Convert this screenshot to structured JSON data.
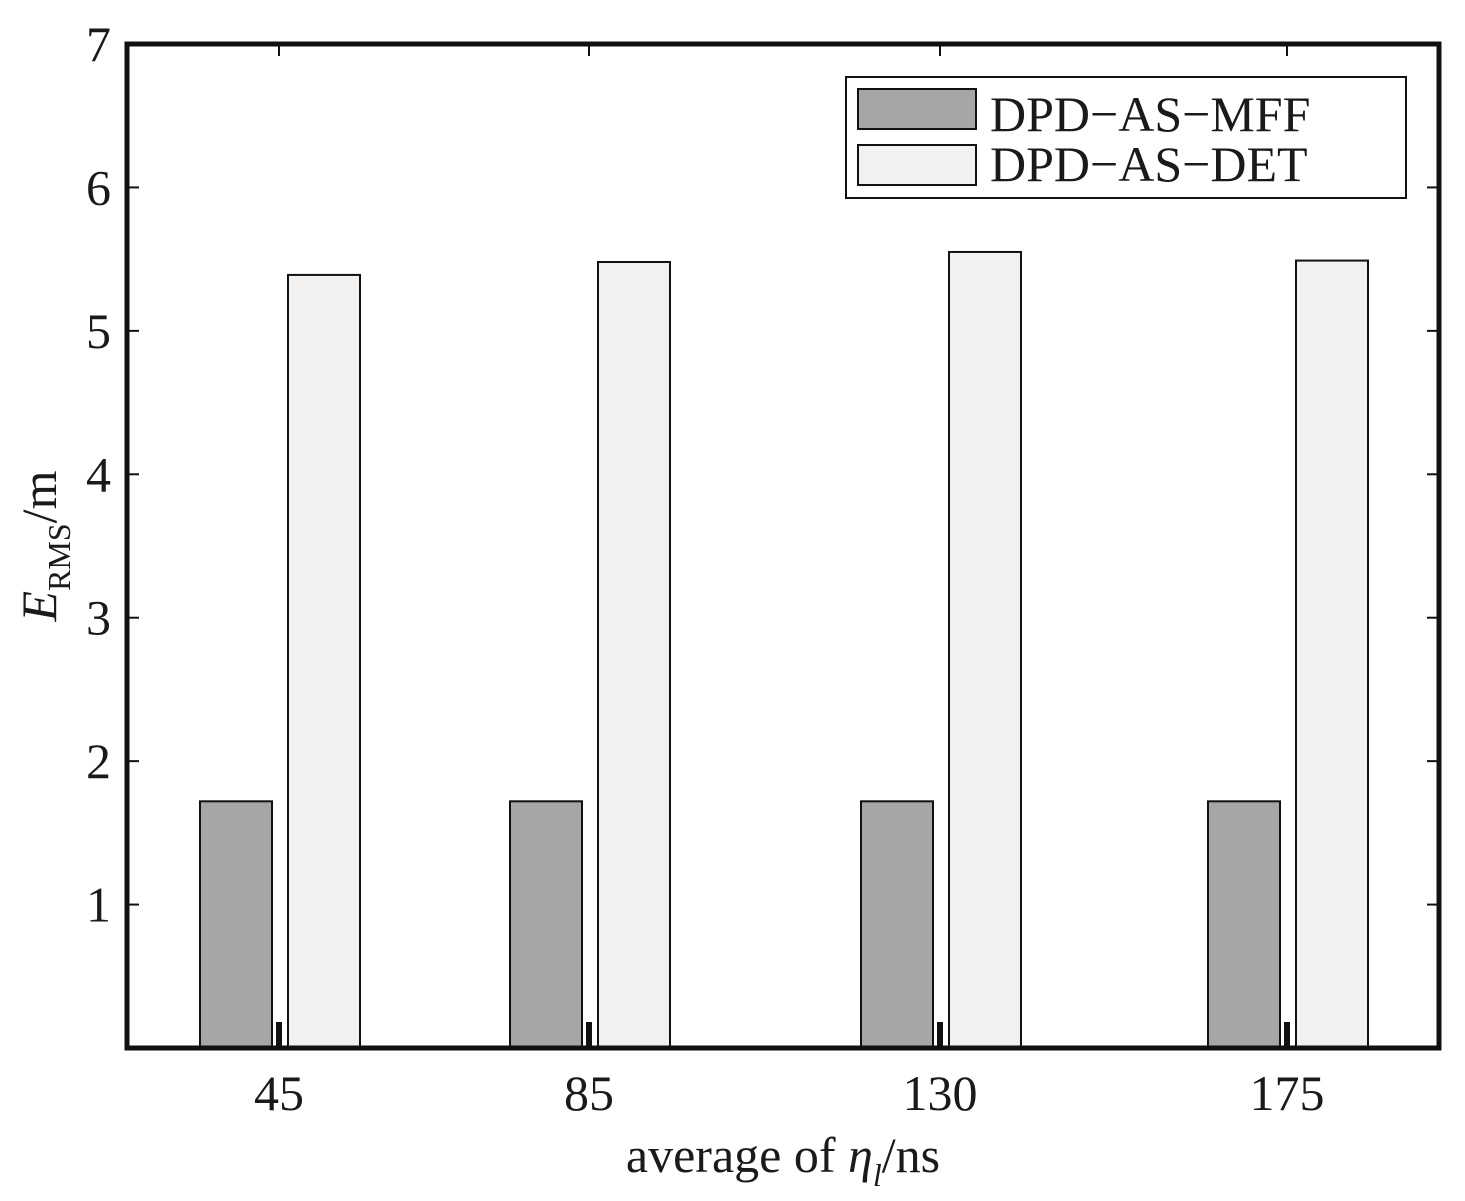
{
  "chart_data": {
    "type": "bar",
    "categories": [
      "45",
      "85",
      "130",
      "175"
    ],
    "series": [
      {
        "name": "DPD−AS−MFF",
        "values": [
          1.72,
          1.72,
          1.72,
          1.72
        ],
        "color": "#a6a6a6"
      },
      {
        "name": "DPD−AS−DET",
        "values": [
          5.39,
          5.48,
          5.55,
          5.49
        ],
        "color": "#f2f1f0"
      }
    ],
    "ylim": [
      0,
      7
    ],
    "yticks": [
      "1",
      "2",
      "3",
      "4",
      "5",
      "6",
      "7"
    ],
    "ylabel": {
      "main": "E",
      "sub": "RMS",
      "unit": "/m"
    },
    "xlabel": {
      "prefix": "average of ",
      "symbol": "η",
      "sub": "l",
      "unit": "/ns"
    },
    "legend_position": "top-right",
    "grid": false
  }
}
